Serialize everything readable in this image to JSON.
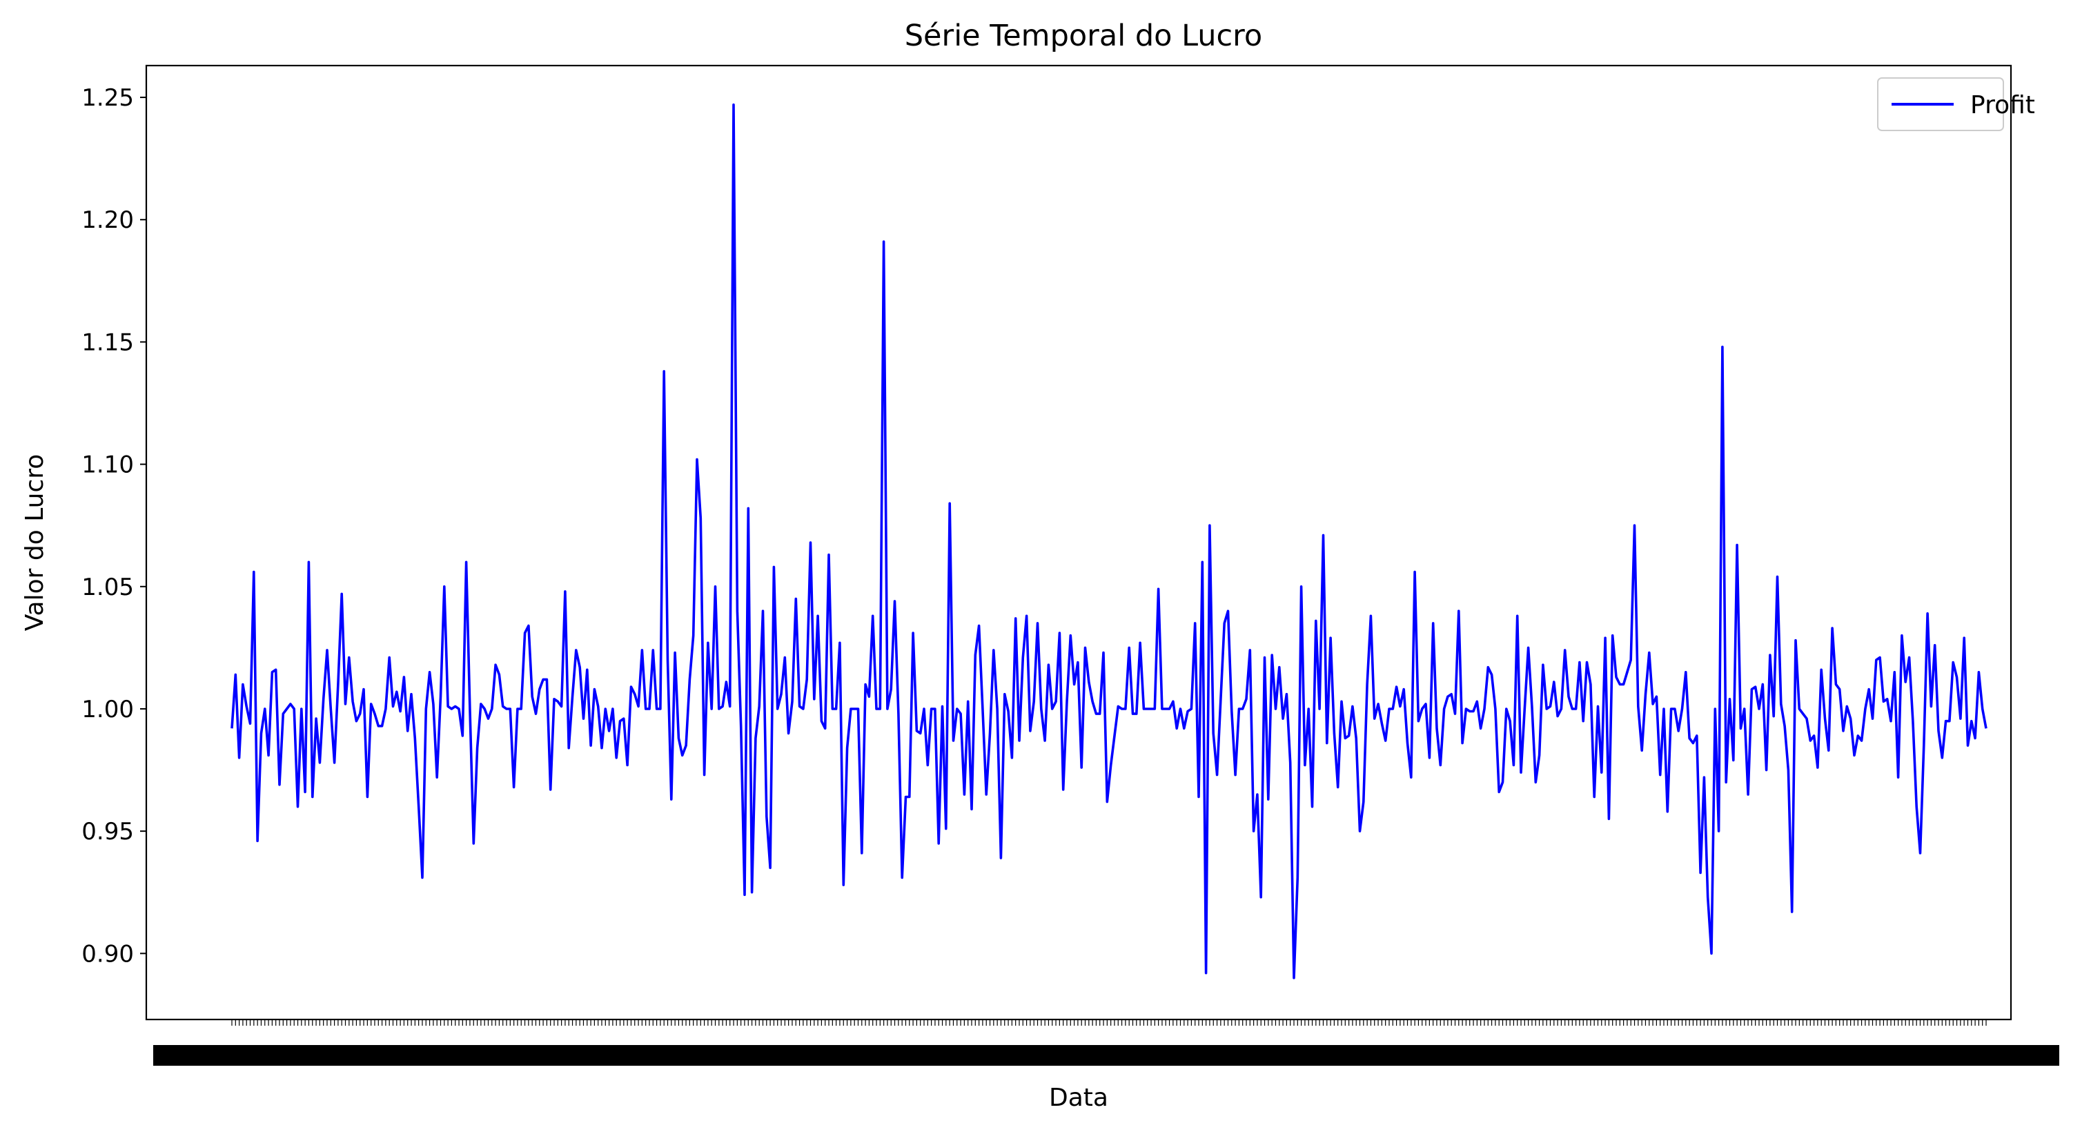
{
  "chart_data": {
    "type": "line",
    "title": "Série Temporal do Lucro",
    "xlabel": "Data",
    "ylabel": "Valor do Lucro",
    "ylim": [
      0.873,
      1.263
    ],
    "yticks": [
      "0.90",
      "0.95",
      "1.00",
      "1.05",
      "1.10",
      "1.15",
      "1.20",
      "1.25"
    ],
    "grid": false,
    "legend_position": "top-right",
    "line_color": "#0000ff",
    "series": [
      {
        "name": "Profit",
        "values": [
          0.992,
          1.014,
          0.98,
          1.01,
          1.001,
          0.994,
          1.056,
          0.946,
          0.99,
          1.0,
          0.981,
          1.015,
          1.016,
          0.969,
          0.998,
          1.0,
          1.002,
          1.0,
          0.96,
          1.0,
          0.966,
          1.06,
          0.964,
          0.996,
          0.978,
          1.004,
          1.024,
          1.0,
          0.978,
          1.01,
          1.047,
          1.002,
          1.021,
          1.003,
          0.995,
          0.998,
          1.008,
          0.964,
          1.002,
          0.998,
          0.993,
          0.993,
          1.0,
          1.021,
          1.001,
          1.007,
          0.999,
          1.013,
          0.991,
          1.006,
          0.988,
          0.96,
          0.931,
          1.0,
          1.015,
          1.002,
          0.972,
          1.005,
          1.05,
          1.001,
          1.0,
          1.001,
          1.0,
          0.989,
          1.06,
          1.0,
          0.945,
          0.984,
          1.002,
          1.0,
          0.996,
          1.0,
          1.018,
          1.014,
          1.001,
          1.0,
          1.0,
          0.968,
          1.0,
          1.0,
          1.031,
          1.034,
          1.005,
          0.998,
          1.008,
          1.012,
          1.012,
          0.967,
          1.004,
          1.003,
          1.001,
          1.048,
          0.984,
          1.005,
          1.024,
          1.017,
          0.996,
          1.016,
          0.985,
          1.008,
          1.001,
          0.984,
          1.0,
          0.991,
          1.0,
          0.98,
          0.995,
          0.996,
          0.977,
          1.009,
          1.006,
          1.001,
          1.024,
          1.0,
          1.0,
          1.024,
          1.0,
          1.0,
          1.138,
          1.02,
          0.963,
          1.023,
          0.988,
          0.981,
          0.985,
          1.012,
          1.03,
          1.102,
          1.078,
          0.973,
          1.027,
          1.0,
          1.05,
          1.0,
          1.001,
          1.011,
          1.001,
          1.247,
          1.04,
          0.993,
          0.924,
          1.082,
          0.925,
          0.988,
          1.001,
          1.04,
          0.956,
          0.935,
          1.058,
          1.0,
          1.006,
          1.021,
          0.99,
          1.003,
          1.045,
          1.001,
          1.0,
          1.012,
          1.068,
          1.004,
          1.038,
          0.995,
          0.992,
          1.063,
          1.0,
          1.0,
          1.027,
          0.928,
          0.984,
          1.0,
          1.0,
          1.0,
          0.941,
          1.01,
          1.005,
          1.038,
          1.0,
          1.0,
          1.191,
          1.0,
          1.008,
          1.044,
          0.998,
          0.931,
          0.964,
          0.964,
          1.031,
          0.991,
          0.99,
          1.0,
          0.977,
          1.0,
          1.0,
          0.945,
          1.001,
          0.951,
          1.084,
          0.987,
          1.0,
          0.998,
          0.965,
          1.003,
          0.959,
          1.022,
          1.034,
          1.0,
          0.965,
          0.99,
          1.024,
          1.0,
          0.939,
          1.006,
          0.999,
          0.98,
          1.037,
          0.987,
          1.021,
          1.038,
          0.991,
          1.003,
          1.035,
          1.0,
          0.987,
          1.018,
          1.0,
          1.003,
          1.031,
          0.967,
          1.003,
          1.03,
          1.01,
          1.019,
          0.976,
          1.025,
          1.011,
          1.003,
          0.998,
          0.998,
          1.023,
          0.962,
          0.977,
          0.989,
          1.001,
          1.0,
          1.0,
          1.025,
          0.998,
          0.998,
          1.027,
          1.0,
          1.0,
          1.0,
          1.0,
          1.049,
          1.0,
          1.0,
          1.0,
          1.003,
          0.992,
          1.0,
          0.992,
          0.999,
          1.0,
          1.035,
          0.964,
          1.06,
          0.892,
          1.075,
          0.99,
          0.973,
          1.004,
          1.035,
          1.04,
          0.999,
          0.973,
          1.0,
          1.0,
          1.004,
          1.024,
          0.95,
          0.965,
          0.923,
          1.021,
          0.963,
          1.022,
          1.0,
          1.017,
          0.996,
          1.006,
          0.978,
          0.89,
          0.931,
          1.05,
          0.977,
          1.0,
          0.96,
          1.036,
          1.0,
          1.071,
          0.986,
          1.029,
          0.99,
          0.968,
          1.003,
          0.988,
          0.989,
          1.001,
          0.988,
          0.95,
          0.962,
          1.01,
          1.038,
          0.996,
          1.002,
          0.994,
          0.987,
          1.0,
          1.0,
          1.009,
          1.001,
          1.008,
          0.986,
          0.972,
          1.056,
          0.995,
          1.0,
          1.002,
          0.98,
          1.035,
          0.992,
          0.977,
          1.0,
          1.005,
          1.006,
          0.998,
          1.04,
          0.986,
          1.0,
          0.999,
          0.999,
          1.003,
          0.992,
          1.0,
          1.017,
          1.014,
          1.0,
          0.966,
          0.97,
          1.0,
          0.995,
          0.977,
          1.038,
          0.974,
          1.0,
          1.025,
          1.001,
          0.97,
          0.981,
          1.018,
          1.0,
          1.001,
          1.011,
          0.997,
          1.0,
          1.024,
          1.005,
          1.0,
          1.0,
          1.019,
          0.995,
          1.019,
          1.01,
          0.964,
          1.001,
          0.974,
          1.029,
          0.955,
          1.03,
          1.013,
          1.01,
          1.01,
          1.015,
          1.02,
          1.075,
          1.001,
          0.983,
          1.006,
          1.023,
          1.002,
          1.005,
          0.973,
          1.0,
          0.958,
          1.0,
          1.0,
          0.991,
          1.0,
          1.015,
          0.988,
          0.986,
          0.989,
          0.933,
          0.972,
          0.923,
          0.9,
          1.0,
          0.95,
          1.148,
          0.97,
          1.004,
          0.979,
          1.067,
          0.992,
          1.0,
          0.965,
          1.008,
          1.009,
          1.0,
          1.01,
          0.975,
          1.022,
          0.997,
          1.054,
          1.002,
          0.993,
          0.975,
          0.917,
          1.028,
          1.0,
          0.998,
          0.996,
          0.987,
          0.989,
          0.976,
          1.016,
          0.996,
          0.983,
          1.033,
          1.01,
          1.008,
          0.991,
          1.001,
          0.996,
          0.981,
          0.989,
          0.987,
          1.0,
          1.008,
          0.996,
          1.02,
          1.021,
          1.003,
          1.004,
          0.995,
          1.015,
          0.972,
          1.03,
          1.011,
          1.021,
          0.995,
          0.96,
          0.941,
          0.985,
          1.039,
          1.001,
          1.026,
          0.991,
          0.98,
          0.995,
          0.995,
          1.019,
          1.013,
          0.996,
          1.029,
          0.985,
          0.995,
          0.988,
          1.015,
          1.0,
          0.992
        ]
      }
    ]
  }
}
